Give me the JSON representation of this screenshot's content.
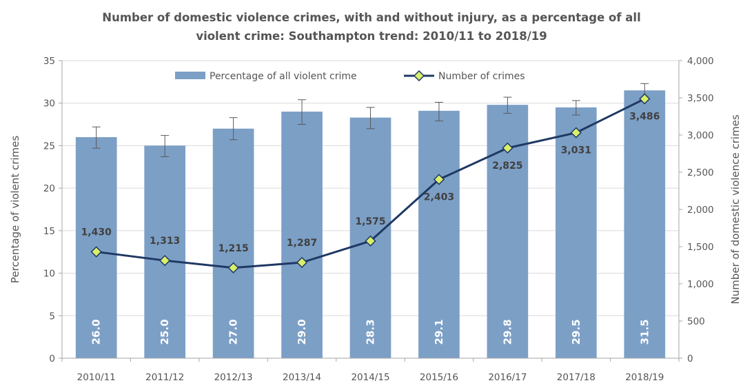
{
  "chart_data": {
    "type": "bar+line",
    "title_line1": "Number of domestic violence crimes, with and without injury, as a percentage of all",
    "title_line2": "violent crime: Southampton trend: 2010/11 to 2018/19",
    "categories": [
      "2010/11",
      "2011/12",
      "2012/13",
      "2013/14",
      "2014/15",
      "2015/16",
      "2016/17",
      "2017/18",
      "2018/19"
    ],
    "series": [
      {
        "name": "Percentage of all violent crime",
        "type": "bar",
        "axis": "left",
        "values": [
          26.0,
          25.0,
          27.0,
          29.0,
          28.3,
          29.1,
          29.8,
          29.5,
          31.5
        ],
        "labels": [
          "26.0",
          "25.0",
          "27.0",
          "29.0",
          "28.3",
          "29.1",
          "29.8",
          "29.5",
          "31.5"
        ],
        "error_low": [
          24.7,
          23.7,
          25.7,
          27.5,
          27.0,
          27.9,
          28.8,
          28.6,
          30.5
        ],
        "error_high": [
          27.2,
          26.2,
          28.3,
          30.4,
          29.5,
          30.1,
          30.7,
          30.3,
          32.3
        ],
        "color": "#7c9fc6"
      },
      {
        "name": "Number of crimes",
        "type": "line",
        "axis": "right",
        "values": [
          1430,
          1313,
          1215,
          1287,
          1575,
          2403,
          2825,
          3031,
          3486
        ],
        "labels": [
          "1,430",
          "1,313",
          "1,215",
          "1,287",
          "1,575",
          "2,403",
          "2,825",
          "3,031",
          "3,486"
        ],
        "color": "#1f3864",
        "marker_color": "#d9ef6b"
      }
    ],
    "y_left": {
      "label": "Percentage of violent crimes",
      "min": 0,
      "max": 35,
      "step": 5,
      "ticks": [
        "0",
        "5",
        "10",
        "15",
        "20",
        "25",
        "30",
        "35"
      ]
    },
    "y_right": {
      "label": "Number of domestic violence crimes",
      "min": 0,
      "max": 4000,
      "step": 500,
      "ticks": [
        "0",
        "500",
        "1,000",
        "1,500",
        "2,000",
        "2,500",
        "3,000",
        "3,500",
        "4,000"
      ]
    },
    "grid": true,
    "legend_position": "top-center"
  }
}
